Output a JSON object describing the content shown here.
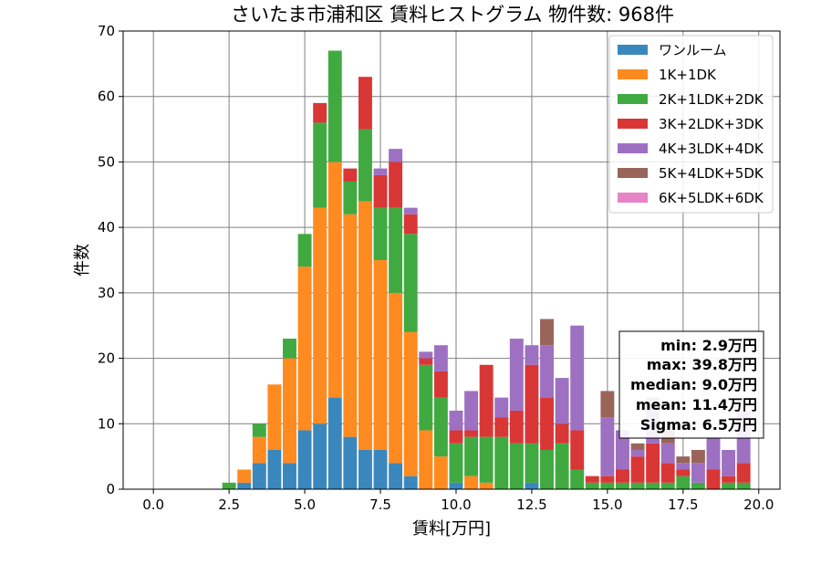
{
  "chart_data": {
    "type": "bar",
    "stacked": true,
    "title": "さいたま市浦和区 賃料ヒストグラム 物件数: 968件",
    "xlabel": "賃料[万円]",
    "ylabel": "件数",
    "xlim": [
      -1,
      20.7
    ],
    "ylim": [
      0,
      70
    ],
    "xticks": [
      "0.0",
      "2.5",
      "5.0",
      "7.5",
      "10.0",
      "12.5",
      "15.0",
      "17.5",
      "20.0"
    ],
    "xtick_values": [
      0,
      2.5,
      5,
      7.5,
      10,
      12.5,
      15,
      17.5,
      20
    ],
    "yticks": [
      "0",
      "10",
      "20",
      "30",
      "40",
      "50",
      "60",
      "70"
    ],
    "ytick_values": [
      0,
      10,
      20,
      30,
      40,
      50,
      60,
      70
    ],
    "grid": true,
    "legend_position": "top-right",
    "bin_width": 0.5,
    "x": [
      2.5,
      3.0,
      3.5,
      4.0,
      4.5,
      5.0,
      5.5,
      6.0,
      6.5,
      7.0,
      7.5,
      8.0,
      8.5,
      9.0,
      9.5,
      10.0,
      10.5,
      11.0,
      11.5,
      12.0,
      12.5,
      13.0,
      13.5,
      14.0,
      14.5,
      15.0,
      15.5,
      16.0,
      16.5,
      17.0,
      17.5,
      18.0,
      18.5,
      19.0,
      19.5
    ],
    "series": [
      {
        "name": "ワンルーム",
        "color": "#3a87be",
        "values": [
          0,
          1,
          4,
          6,
          4,
          9,
          10,
          14,
          8,
          6,
          6,
          4,
          2,
          0,
          0,
          1,
          0,
          0,
          0,
          0,
          1,
          0,
          0,
          0,
          0,
          0,
          0,
          0,
          0,
          0,
          0,
          0,
          0,
          0,
          0
        ]
      },
      {
        "name": "1K+1DK",
        "color": "#ff8a1f",
        "values": [
          0,
          2,
          4,
          10,
          16,
          25,
          33,
          36,
          34,
          38,
          29,
          26,
          22,
          9,
          5,
          0,
          2,
          1,
          0,
          0,
          0,
          0,
          0,
          0,
          0,
          0,
          0,
          0,
          0,
          0,
          0,
          0,
          0,
          0,
          0
        ]
      },
      {
        "name": "2K+1LDK+2DK",
        "color": "#40aa40",
        "values": [
          1,
          0,
          2,
          0,
          3,
          5,
          13,
          17,
          5,
          11,
          8,
          13,
          15,
          10,
          9,
          6,
          6,
          7,
          8,
          7,
          6,
          6,
          7,
          3,
          1,
          1,
          1,
          1,
          1,
          1,
          2,
          1,
          0,
          1,
          1
        ]
      },
      {
        "name": "3K+2LDK+3DK",
        "color": "#d93636",
        "values": [
          0,
          0,
          0,
          0,
          0,
          0,
          3,
          0,
          2,
          8,
          5,
          7,
          3,
          1,
          4,
          2,
          1,
          11,
          3,
          5,
          12,
          8,
          3,
          6,
          1,
          1,
          2,
          4,
          6,
          3,
          1,
          0,
          3,
          1,
          3
        ]
      },
      {
        "name": "4K+3LDK+4DK",
        "color": "#9e70c2",
        "values": [
          0,
          0,
          0,
          0,
          0,
          0,
          0,
          0,
          0,
          0,
          1,
          2,
          1,
          1,
          4,
          3,
          6,
          0,
          3,
          11,
          3,
          8,
          7,
          16,
          0,
          9,
          6,
          1,
          7,
          3,
          1,
          3,
          5,
          4,
          8
        ]
      },
      {
        "name": "5K+4LDK+5DK",
        "color": "#996559",
        "values": [
          0,
          0,
          0,
          0,
          0,
          0,
          0,
          0,
          0,
          0,
          0,
          0,
          0,
          0,
          0,
          0,
          0,
          0,
          0,
          0,
          0,
          4,
          0,
          0,
          0,
          4,
          0,
          1,
          0,
          2,
          1,
          2,
          0,
          0,
          0
        ]
      },
      {
        "name": "6K+5LDK+6DK",
        "color": "#e783c7",
        "values": [
          0,
          0,
          0,
          0,
          0,
          0,
          0,
          0,
          0,
          0,
          0,
          0,
          0,
          0,
          0,
          0,
          0,
          0,
          0,
          0,
          0,
          0,
          0,
          0,
          0,
          0,
          0,
          0,
          0,
          0,
          0,
          0,
          0,
          0,
          0
        ]
      }
    ],
    "stats": {
      "min": "min: 2.9万円",
      "max": "max: 39.8万円",
      "median": "median: 9.0万円",
      "mean": "mean: 11.4万円",
      "sigma": "Sigma: 6.5万円"
    }
  }
}
